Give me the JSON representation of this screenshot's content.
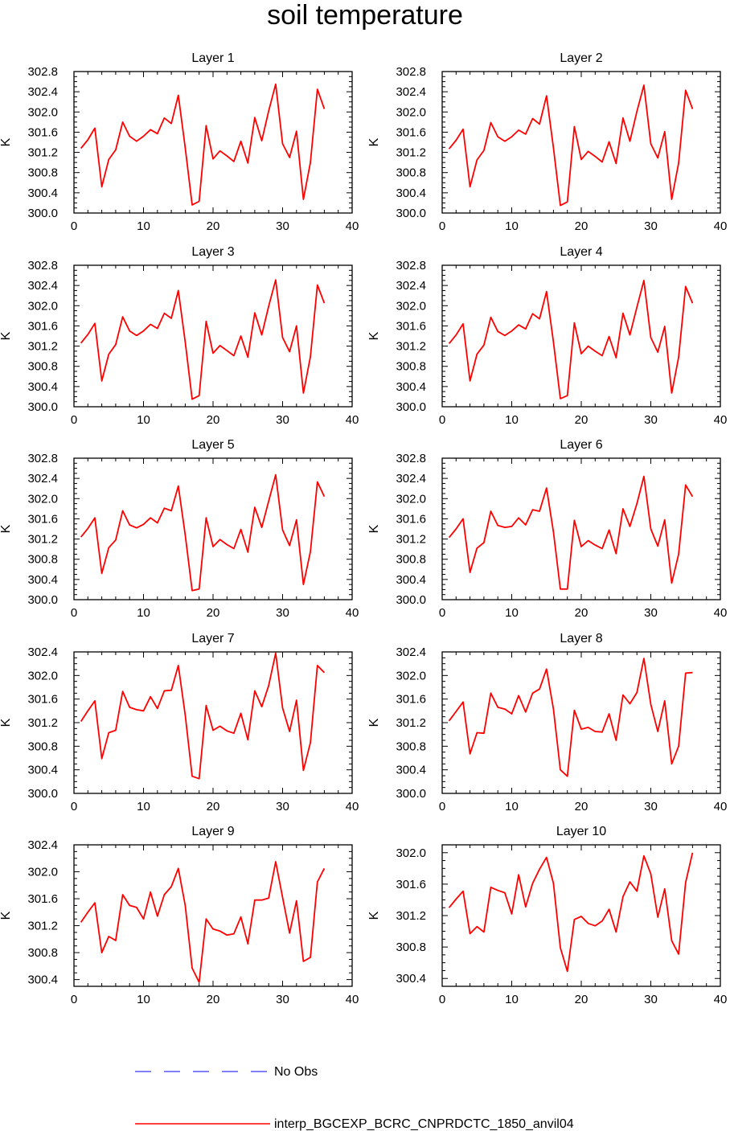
{
  "figure": {
    "title": "soil temperature"
  },
  "legend": {
    "placement": "bottom-center",
    "entries": [
      {
        "label": "No Obs",
        "color": "#0000ff",
        "style": "dashed"
      },
      {
        "label": "interp_BGCEXP_BCRC_CNPRDCTC_1850_anvil04",
        "color": "#ff0000",
        "style": "solid"
      }
    ]
  },
  "chart_data": [
    {
      "type": "line",
      "title": "Layer 1",
      "ylabel": "K",
      "xlim": [
        0,
        40
      ],
      "ylim": [
        300.0,
        302.8
      ],
      "xticks": [
        0,
        10,
        20,
        30,
        40
      ],
      "yticks": [
        300.0,
        300.4,
        300.8,
        301.2,
        301.6,
        302.0,
        302.4,
        302.8
      ],
      "x": [
        1,
        2,
        3,
        4,
        5,
        6,
        7,
        8,
        9,
        10,
        11,
        12,
        13,
        14,
        15,
        16,
        17,
        18,
        19,
        20,
        21,
        22,
        23,
        24,
        25,
        26,
        27,
        28,
        29,
        30,
        31,
        32,
        33,
        34,
        35,
        36
      ],
      "series": [
        {
          "name": "interp_BGCEXP_BCRC_CNPRDCTC_1850_anvil04",
          "color": "#ff0000",
          "values": [
            301.28,
            301.45,
            301.68,
            300.52,
            301.06,
            301.25,
            301.8,
            301.52,
            301.42,
            301.52,
            301.65,
            301.57,
            301.88,
            301.77,
            302.33,
            301.29,
            300.16,
            300.23,
            301.73,
            301.07,
            301.23,
            301.13,
            301.02,
            301.42,
            300.99,
            301.89,
            301.43,
            302.02,
            302.55,
            301.37,
            301.1,
            301.62,
            300.27,
            301.0,
            302.45,
            302.06
          ]
        }
      ]
    },
    {
      "type": "line",
      "title": "Layer 2",
      "ylabel": "K",
      "xlim": [
        0,
        40
      ],
      "ylim": [
        300.0,
        302.8
      ],
      "xticks": [
        0,
        10,
        20,
        30,
        40
      ],
      "yticks": [
        300.0,
        300.4,
        300.8,
        301.2,
        301.6,
        302.0,
        302.4,
        302.8
      ],
      "x": [
        1,
        2,
        3,
        4,
        5,
        6,
        7,
        8,
        9,
        10,
        11,
        12,
        13,
        14,
        15,
        16,
        17,
        18,
        19,
        20,
        21,
        22,
        23,
        24,
        25,
        26,
        27,
        28,
        29,
        30,
        31,
        32,
        33,
        34,
        35,
        36
      ],
      "series": [
        {
          "name": "interp_BGCEXP_BCRC_CNPRDCTC_1850_anvil04",
          "color": "#ff0000",
          "values": [
            301.27,
            301.44,
            301.66,
            300.52,
            301.05,
            301.24,
            301.79,
            301.51,
            301.42,
            301.51,
            301.64,
            301.56,
            301.87,
            301.76,
            302.32,
            301.29,
            300.15,
            300.22,
            301.71,
            301.06,
            301.22,
            301.12,
            301.01,
            301.41,
            300.98,
            301.88,
            301.42,
            302.01,
            302.53,
            301.37,
            301.09,
            301.61,
            300.27,
            300.99,
            302.43,
            302.06
          ]
        }
      ]
    },
    {
      "type": "line",
      "title": "Layer 3",
      "ylabel": "K",
      "xlim": [
        0,
        40
      ],
      "ylim": [
        300.0,
        302.8
      ],
      "xticks": [
        0,
        10,
        20,
        30,
        40
      ],
      "yticks": [
        300.0,
        300.4,
        300.8,
        301.2,
        301.6,
        302.0,
        302.4,
        302.8
      ],
      "x": [
        1,
        2,
        3,
        4,
        5,
        6,
        7,
        8,
        9,
        10,
        11,
        12,
        13,
        14,
        15,
        16,
        17,
        18,
        19,
        20,
        21,
        22,
        23,
        24,
        25,
        26,
        27,
        28,
        29,
        30,
        31,
        32,
        33,
        34,
        35,
        36
      ],
      "series": [
        {
          "name": "interp_BGCEXP_BCRC_CNPRDCTC_1850_anvil04",
          "color": "#ff0000",
          "values": [
            301.26,
            301.43,
            301.65,
            300.51,
            301.04,
            301.23,
            301.78,
            301.5,
            301.41,
            301.5,
            301.63,
            301.55,
            301.85,
            301.75,
            302.3,
            301.28,
            300.15,
            300.22,
            301.69,
            301.06,
            301.21,
            301.11,
            301.01,
            301.4,
            300.98,
            301.86,
            301.42,
            301.99,
            302.51,
            301.37,
            301.09,
            301.6,
            300.27,
            300.99,
            302.41,
            302.05
          ]
        }
      ]
    },
    {
      "type": "line",
      "title": "Layer 4",
      "ylabel": "K",
      "xlim": [
        0,
        40
      ],
      "ylim": [
        300.0,
        302.8
      ],
      "xticks": [
        0,
        10,
        20,
        30,
        40
      ],
      "yticks": [
        300.0,
        300.4,
        300.8,
        301.2,
        301.6,
        302.0,
        302.4,
        302.8
      ],
      "x": [
        1,
        2,
        3,
        4,
        5,
        6,
        7,
        8,
        9,
        10,
        11,
        12,
        13,
        14,
        15,
        16,
        17,
        18,
        19,
        20,
        21,
        22,
        23,
        24,
        25,
        26,
        27,
        28,
        29,
        30,
        31,
        32,
        33,
        34,
        35,
        36
      ],
      "series": [
        {
          "name": "interp_BGCEXP_BCRC_CNPRDCTC_1850_anvil04",
          "color": "#ff0000",
          "values": [
            301.25,
            301.42,
            301.64,
            300.51,
            301.04,
            301.22,
            301.77,
            301.49,
            301.41,
            301.5,
            301.62,
            301.54,
            301.84,
            301.74,
            302.28,
            301.28,
            300.16,
            300.22,
            301.66,
            301.05,
            301.2,
            301.1,
            301.01,
            301.39,
            300.97,
            301.85,
            301.42,
            301.97,
            302.5,
            301.37,
            301.08,
            301.59,
            300.27,
            300.98,
            302.38,
            302.05
          ]
        }
      ]
    },
    {
      "type": "line",
      "title": "Layer 5",
      "ylabel": "K",
      "xlim": [
        0,
        40
      ],
      "ylim": [
        300.0,
        302.8
      ],
      "xticks": [
        0,
        10,
        20,
        30,
        40
      ],
      "yticks": [
        300.0,
        300.4,
        300.8,
        301.2,
        301.6,
        302.0,
        302.4,
        302.8
      ],
      "x": [
        1,
        2,
        3,
        4,
        5,
        6,
        7,
        8,
        9,
        10,
        11,
        12,
        13,
        14,
        15,
        16,
        17,
        18,
        19,
        20,
        21,
        22,
        23,
        24,
        25,
        26,
        27,
        28,
        29,
        30,
        31,
        32,
        33,
        34,
        35,
        36
      ],
      "series": [
        {
          "name": "interp_BGCEXP_BCRC_CNPRDCTC_1850_anvil04",
          "color": "#ff0000",
          "values": [
            301.24,
            301.41,
            301.62,
            300.52,
            301.03,
            301.18,
            301.76,
            301.48,
            301.42,
            301.49,
            301.62,
            301.52,
            301.81,
            301.76,
            302.25,
            301.28,
            300.18,
            300.21,
            301.62,
            301.05,
            301.19,
            301.09,
            301.01,
            301.39,
            300.94,
            301.83,
            301.43,
            301.95,
            302.47,
            301.38,
            301.07,
            301.58,
            300.3,
            300.95,
            302.33,
            302.04
          ]
        }
      ]
    },
    {
      "type": "line",
      "title": "Layer 6",
      "ylabel": "K",
      "xlim": [
        0,
        40
      ],
      "ylim": [
        300.0,
        302.8
      ],
      "xticks": [
        0,
        10,
        20,
        30,
        40
      ],
      "yticks": [
        300.0,
        300.4,
        300.8,
        301.2,
        301.6,
        302.0,
        302.4,
        302.8
      ],
      "x": [
        1,
        2,
        3,
        4,
        5,
        6,
        7,
        8,
        9,
        10,
        11,
        12,
        13,
        14,
        15,
        16,
        17,
        18,
        19,
        20,
        21,
        22,
        23,
        24,
        25,
        26,
        27,
        28,
        29,
        30,
        31,
        32,
        33,
        34,
        35,
        36
      ],
      "series": [
        {
          "name": "interp_BGCEXP_BCRC_CNPRDCTC_1850_anvil04",
          "color": "#ff0000",
          "values": [
            301.23,
            301.4,
            301.6,
            300.54,
            301.02,
            301.13,
            301.75,
            301.47,
            301.43,
            301.45,
            301.62,
            301.48,
            301.78,
            301.75,
            302.21,
            301.34,
            300.21,
            300.21,
            301.57,
            301.05,
            301.17,
            301.08,
            301.01,
            301.38,
            300.91,
            301.8,
            301.45,
            301.9,
            302.44,
            301.4,
            301.06,
            301.58,
            300.33,
            300.9,
            302.27,
            302.04
          ]
        }
      ]
    },
    {
      "type": "line",
      "title": "Layer 7",
      "ylabel": "K",
      "xlim": [
        0,
        40
      ],
      "ylim": [
        300.0,
        302.4
      ],
      "xticks": [
        0,
        10,
        20,
        30,
        40
      ],
      "yticks": [
        300.0,
        300.4,
        300.8,
        301.2,
        301.6,
        302.0,
        302.4
      ],
      "x": [
        1,
        2,
        3,
        4,
        5,
        6,
        7,
        8,
        9,
        10,
        11,
        12,
        13,
        14,
        15,
        16,
        17,
        18,
        19,
        20,
        21,
        22,
        23,
        24,
        25,
        26,
        27,
        28,
        29,
        30,
        31,
        32,
        33,
        34,
        35,
        36
      ],
      "series": [
        {
          "name": "interp_BGCEXP_BCRC_CNPRDCTC_1850_anvil04",
          "color": "#ff0000",
          "values": [
            301.22,
            301.4,
            301.57,
            300.59,
            301.03,
            301.07,
            301.73,
            301.46,
            301.42,
            301.4,
            301.64,
            301.44,
            301.74,
            301.75,
            302.17,
            301.33,
            300.29,
            300.25,
            301.49,
            301.07,
            301.14,
            301.06,
            301.02,
            301.36,
            300.91,
            301.74,
            301.47,
            301.83,
            302.38,
            301.45,
            301.05,
            301.58,
            300.39,
            300.86,
            302.17,
            302.05
          ]
        }
      ]
    },
    {
      "type": "line",
      "title": "Layer 8",
      "ylabel": "K",
      "xlim": [
        0,
        40
      ],
      "ylim": [
        300.0,
        302.4
      ],
      "xticks": [
        0,
        10,
        20,
        30,
        40
      ],
      "yticks": [
        300.0,
        300.4,
        300.8,
        301.2,
        301.6,
        302.0,
        302.4
      ],
      "x": [
        1,
        2,
        3,
        4,
        5,
        6,
        7,
        8,
        9,
        10,
        11,
        12,
        13,
        14,
        15,
        16,
        17,
        18,
        19,
        20,
        21,
        22,
        23,
        24,
        25,
        26,
        27,
        28,
        29,
        30,
        31,
        32,
        33,
        34,
        35,
        36
      ],
      "series": [
        {
          "name": "interp_BGCEXP_BCRC_CNPRDCTC_1850_anvil04",
          "color": "#ff0000",
          "values": [
            301.23,
            301.39,
            301.55,
            300.67,
            301.03,
            301.02,
            301.7,
            301.46,
            301.43,
            301.35,
            301.66,
            301.38,
            301.7,
            301.77,
            302.11,
            301.43,
            300.4,
            300.29,
            301.41,
            301.09,
            301.12,
            301.05,
            301.04,
            301.35,
            300.9,
            301.67,
            301.52,
            301.71,
            302.29,
            301.51,
            301.05,
            301.57,
            300.5,
            300.8,
            302.04,
            302.05
          ]
        }
      ]
    },
    {
      "type": "line",
      "title": "Layer 9",
      "ylabel": "K",
      "xlim": [
        0,
        40
      ],
      "ylim": [
        300.3,
        302.4
      ],
      "xticks": [
        0,
        10,
        20,
        30,
        40
      ],
      "yticks": [
        300.4,
        300.8,
        301.2,
        301.6,
        302.0,
        302.4
      ],
      "x": [
        1,
        2,
        3,
        4,
        5,
        6,
        7,
        8,
        9,
        10,
        11,
        12,
        13,
        14,
        15,
        16,
        17,
        18,
        19,
        20,
        21,
        22,
        23,
        24,
        25,
        26,
        27,
        28,
        29,
        30,
        31,
        32,
        33,
        34,
        35,
        36
      ],
      "series": [
        {
          "name": "interp_BGCEXP_BCRC_CNPRDCTC_1850_anvil04",
          "color": "#ff0000",
          "values": [
            301.25,
            301.4,
            301.54,
            300.8,
            301.04,
            300.98,
            301.66,
            301.5,
            301.47,
            301.3,
            301.7,
            301.34,
            301.66,
            301.78,
            302.05,
            301.5,
            300.57,
            300.36,
            301.3,
            301.15,
            301.12,
            301.06,
            301.08,
            301.33,
            300.93,
            301.58,
            301.58,
            301.61,
            302.15,
            301.62,
            301.09,
            301.57,
            300.67,
            300.73,
            301.85,
            302.05
          ]
        }
      ]
    },
    {
      "type": "line",
      "title": "Layer 10",
      "ylabel": "K",
      "xlim": [
        0,
        40
      ],
      "ylim": [
        300.3,
        302.1
      ],
      "xticks": [
        0,
        10,
        20,
        30,
        40
      ],
      "yticks": [
        300.4,
        300.8,
        301.2,
        301.6,
        302.0
      ],
      "x": [
        1,
        2,
        3,
        4,
        5,
        6,
        7,
        8,
        9,
        10,
        11,
        12,
        13,
        14,
        15,
        16,
        17,
        18,
        19,
        20,
        21,
        22,
        23,
        24,
        25,
        26,
        27,
        28,
        29,
        30,
        31,
        32,
        33,
        34,
        35,
        36
      ],
      "series": [
        {
          "name": "interp_BGCEXP_BCRC_CNPRDCTC_1850_anvil04",
          "color": "#ff0000",
          "values": [
            301.3,
            301.41,
            301.51,
            300.97,
            301.06,
            300.99,
            301.56,
            301.52,
            301.49,
            301.22,
            301.72,
            301.31,
            301.61,
            301.79,
            301.94,
            301.61,
            300.79,
            300.49,
            301.15,
            301.19,
            301.1,
            301.07,
            301.13,
            301.28,
            300.99,
            301.44,
            301.63,
            301.51,
            301.96,
            301.73,
            301.18,
            301.54,
            300.88,
            300.71,
            301.62,
            302.0
          ]
        }
      ]
    }
  ]
}
